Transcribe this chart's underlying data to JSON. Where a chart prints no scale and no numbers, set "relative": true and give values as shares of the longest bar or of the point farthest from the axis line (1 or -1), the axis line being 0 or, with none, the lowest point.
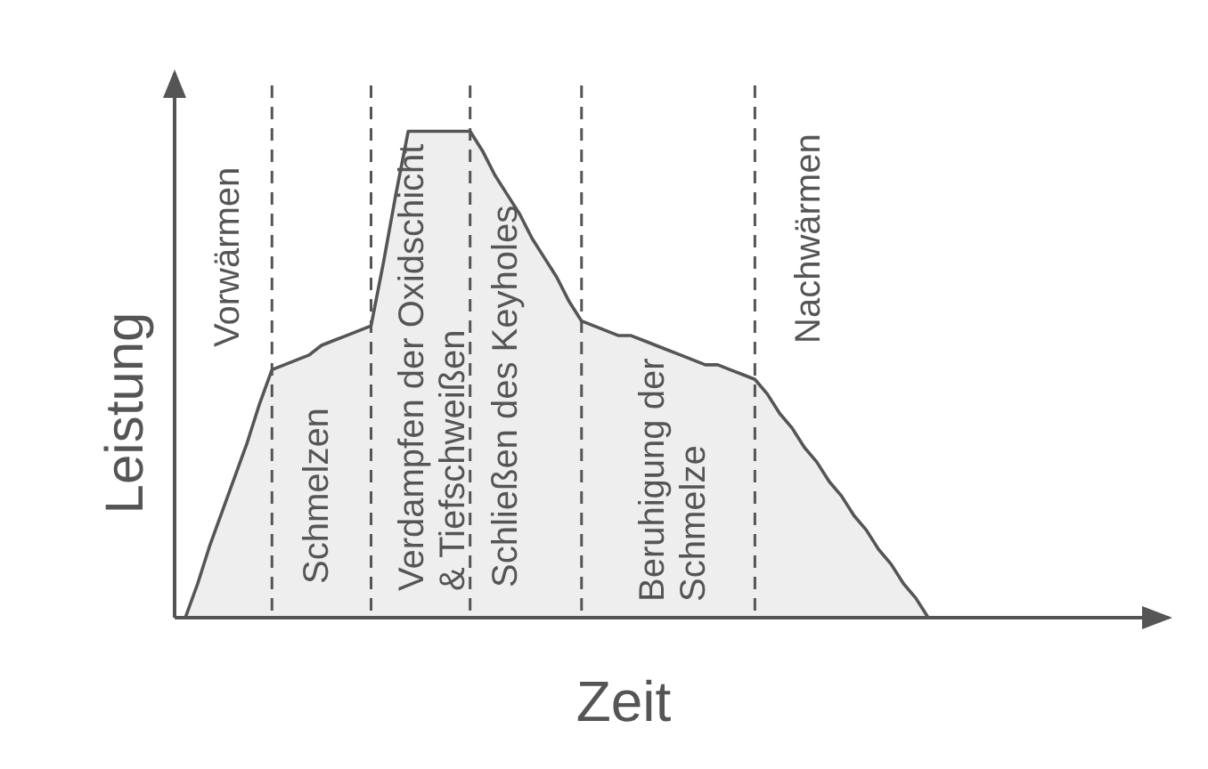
{
  "chart_data": {
    "type": "area",
    "relative": true,
    "xlabel": "Zeit",
    "ylabel": "Leistung",
    "categories": [
      null,
      null,
      null,
      null,
      null,
      null,
      null,
      null,
      null,
      null,
      null,
      null,
      null,
      null,
      null,
      null,
      null,
      null,
      null,
      null,
      null,
      null,
      null,
      null,
      null,
      null,
      null,
      null,
      null,
      null,
      null,
      null,
      null,
      null,
      null,
      null,
      null,
      null,
      null,
      null,
      null,
      null,
      null,
      null,
      null,
      null,
      null,
      null,
      null,
      null,
      null,
      null,
      null,
      null,
      null,
      null,
      null,
      null,
      null,
      null,
      null
    ],
    "series": [
      {
        "color": "#eeeeee",
        "values": [
          0,
          0.07,
          0.15,
          0.22,
          0.29,
          0.36,
          0.44,
          0.51,
          0.52,
          0.53,
          0.54,
          0.56,
          0.57,
          0.58,
          0.59,
          0.6,
          0.73,
          0.87,
          1,
          1,
          1,
          1,
          1,
          1,
          0.96,
          0.91,
          0.87,
          0.83,
          0.78,
          0.74,
          0.7,
          0.65,
          0.61,
          0.6,
          0.59,
          0.58,
          0.58,
          0.57,
          0.56,
          0.55,
          0.54,
          0.53,
          0.52,
          0.52,
          0.51,
          0.5,
          0.49,
          0.46,
          0.42,
          0.39,
          0.35,
          0.32,
          0.28,
          0.25,
          0.21,
          0.18,
          0.14,
          0.11,
          0.07,
          0.04,
          0
        ]
      }
    ],
    "grid": "x",
    "annotations": [
      "Vorwärmen",
      "Schmelzen",
      "Verdampfen der Oxidschicht\n& Tiefschweißen",
      "Schließen des Keyholes",
      "Beruhigung der\nSchmelze",
      "Nachwärmen"
    ]
  }
}
